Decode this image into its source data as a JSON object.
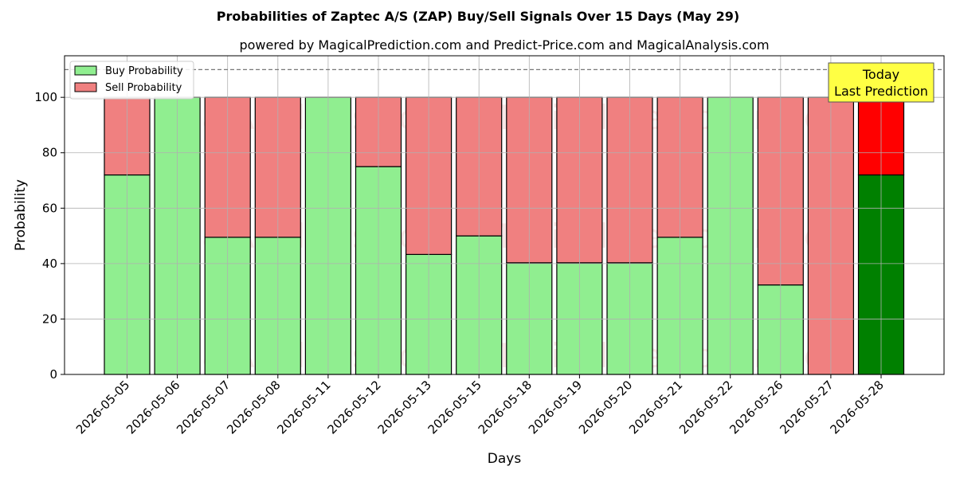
{
  "chart_data": {
    "type": "bar",
    "stacked": true,
    "title": "Probabilities of Zaptec A/S (ZAP) Buy/Sell Signals Over 15 Days (May 29)",
    "subtitle": "powered by MagicalPrediction.com and Predict-Price.com and MagicalAnalysis.com",
    "xlabel": "Days",
    "ylabel": "Probability",
    "ylim": [
      0,
      115
    ],
    "yticks": [
      0,
      20,
      40,
      60,
      80,
      100
    ],
    "reference_line": 110,
    "grid": true,
    "legend_position": "top-left",
    "categories": [
      "2026-05-05",
      "2026-05-06",
      "2026-05-07",
      "2026-05-08",
      "2026-05-11",
      "2026-05-12",
      "2026-05-13",
      "2026-05-15",
      "2026-05-18",
      "2026-05-19",
      "2026-05-20",
      "2026-05-21",
      "2026-05-22",
      "2026-05-26",
      "2026-05-27",
      "2026-05-28"
    ],
    "series": [
      {
        "name": "Buy Probability",
        "color": "#90ee90",
        "values": [
          72,
          100,
          49.5,
          49.5,
          100,
          75,
          43.3,
          50,
          40.3,
          40.3,
          40.3,
          49.5,
          100,
          32.3,
          0,
          72
        ]
      },
      {
        "name": "Sell Probability",
        "color": "#f08080",
        "values": [
          28,
          0,
          50.5,
          50.5,
          0,
          25,
          56.7,
          50,
          59.7,
          59.7,
          59.7,
          50.5,
          0,
          67.7,
          100,
          28
        ]
      }
    ],
    "highlight": {
      "index": 15,
      "buy_color": "#008000",
      "sell_color": "#ff0000"
    },
    "annotation": {
      "line1": "Today",
      "line2": "Last Prediction",
      "color": "#ffff44"
    },
    "watermarks": [
      "MagicalAnalysis.com",
      "MagicalPrediction.com"
    ]
  }
}
